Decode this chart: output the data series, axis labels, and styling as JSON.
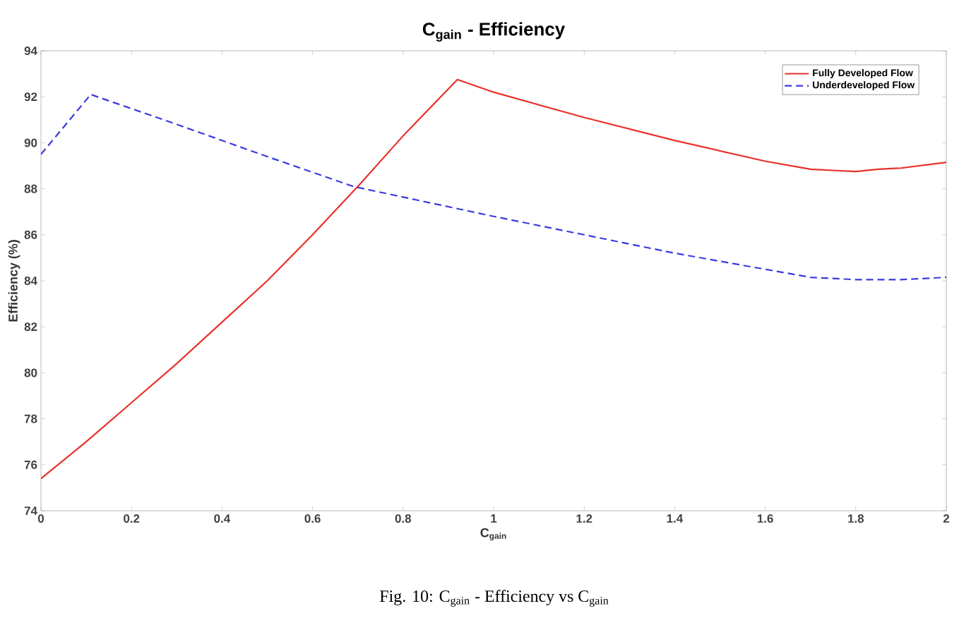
{
  "chart_data": {
    "type": "line",
    "title": "C$_{gain}$ - Efficiency",
    "xlabel": "C$_{gain}$",
    "ylabel": "Efficiency (%)",
    "xlim": [
      0,
      2
    ],
    "ylim": [
      74,
      94
    ],
    "xticks": [
      0,
      0.2,
      0.4,
      0.6,
      0.8,
      1,
      1.2,
      1.4,
      1.6,
      1.8,
      2
    ],
    "yticks": [
      74,
      76,
      78,
      80,
      82,
      84,
      86,
      88,
      90,
      92,
      94
    ],
    "grid": false,
    "legend": "top right",
    "series": [
      {
        "name": "Fully Developed Flow",
        "color": "#e8302a",
        "line_style": "solid",
        "x": [
          0,
          0.1,
          0.2,
          0.3,
          0.4,
          0.5,
          0.6,
          0.7,
          0.8,
          0.92,
          1.0,
          1.2,
          1.4,
          1.6,
          1.7,
          1.75,
          1.8,
          1.85,
          1.9,
          2.0
        ],
        "values": [
          75.4,
          77.0,
          78.7,
          80.4,
          82.2,
          84.0,
          86.0,
          88.1,
          90.3,
          92.75,
          92.2,
          91.1,
          90.1,
          89.2,
          88.85,
          88.8,
          88.75,
          88.85,
          88.9,
          89.15
        ]
      },
      {
        "name": "Underdeveloped Flow",
        "color": "#3a3ae0",
        "line_style": "dashed",
        "x": [
          0,
          0.11,
          0.3,
          0.5,
          0.69,
          1.0,
          1.2,
          1.4,
          1.6,
          1.7,
          1.8,
          1.9,
          2.0
        ],
        "values": [
          89.5,
          92.1,
          90.8,
          89.4,
          88.1,
          86.8,
          86.0,
          85.2,
          84.5,
          84.15,
          84.05,
          84.05,
          84.15
        ]
      }
    ],
    "annotations": [
      "Fig. 10: C$_{gain}$ - Efficiency vs C$_{gain}$"
    ]
  }
}
